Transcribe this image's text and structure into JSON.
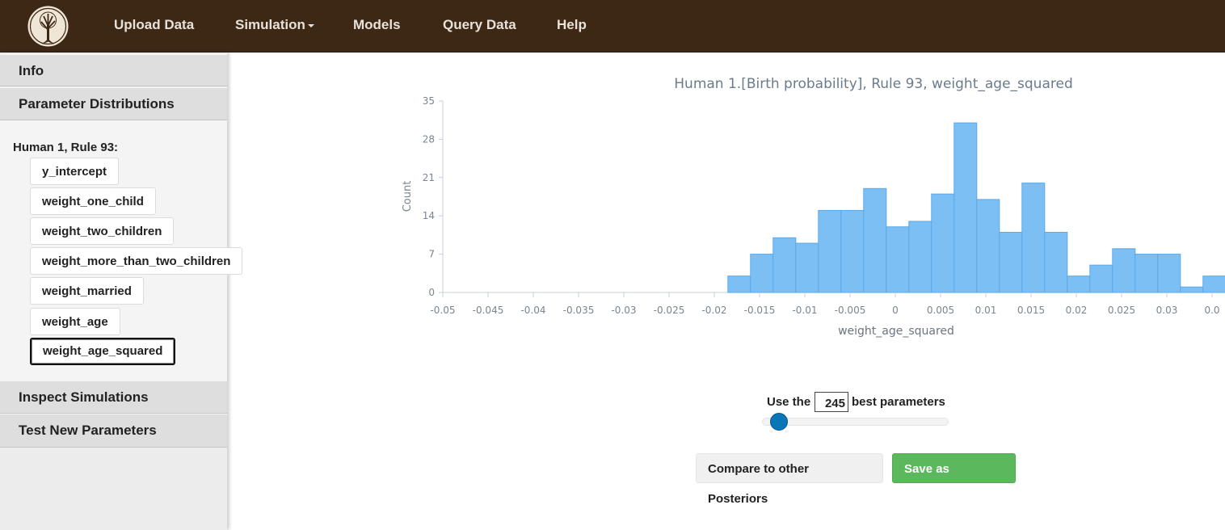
{
  "nav": {
    "items": [
      "Upload Data",
      "Simulation",
      "Models",
      "Query Data",
      "Help"
    ],
    "logo_icon": "tree-logo-icon"
  },
  "sidebar": {
    "sections": [
      "Info",
      "Parameter Distributions",
      "Inspect Simulations",
      "Test New Parameters"
    ],
    "group_title": "Human 1, Rule 93:",
    "params": [
      "y_intercept",
      "weight_one_child",
      "weight_two_children",
      "weight_more_than_two_children",
      "weight_married",
      "weight_age",
      "weight_age_squared"
    ],
    "selected_param": "weight_age_squared"
  },
  "chart_data": {
    "type": "bar",
    "title": "Human 1.[Birth probability], Rule 93, weight_age_squared",
    "xlabel": "weight_age_squared",
    "ylabel": "Count",
    "ylim": [
      0,
      35
    ],
    "yticks": [
      "0",
      "7",
      "14",
      "21",
      "28",
      "35"
    ],
    "xticks": [
      "-0.05",
      "-0.045",
      "-0.04",
      "-0.035",
      "-0.03",
      "-0.025",
      "-0.02",
      "-0.015",
      "-0.01",
      "-0.005",
      "0",
      "0.005",
      "0.01",
      "0.015",
      "0.02",
      "0.025",
      "0.03",
      "0.0"
    ],
    "bin_width": 0.0025,
    "bins": [
      {
        "x0": -0.0185,
        "count": 3
      },
      {
        "x0": -0.016,
        "count": 7
      },
      {
        "x0": -0.0135,
        "count": 10
      },
      {
        "x0": -0.011,
        "count": 9
      },
      {
        "x0": -0.0085,
        "count": 15
      },
      {
        "x0": -0.006,
        "count": 15
      },
      {
        "x0": -0.0035,
        "count": 19
      },
      {
        "x0": -0.001,
        "count": 12
      },
      {
        "x0": 0.0015,
        "count": 13
      },
      {
        "x0": 0.004,
        "count": 18
      },
      {
        "x0": 0.0065,
        "count": 31
      },
      {
        "x0": 0.009,
        "count": 17
      },
      {
        "x0": 0.0115,
        "count": 11
      },
      {
        "x0": 0.014,
        "count": 20
      },
      {
        "x0": 0.0165,
        "count": 11
      },
      {
        "x0": 0.019,
        "count": 3
      },
      {
        "x0": 0.0215,
        "count": 5
      },
      {
        "x0": 0.024,
        "count": 8
      },
      {
        "x0": 0.0265,
        "count": 7
      },
      {
        "x0": 0.029,
        "count": 7
      },
      {
        "x0": 0.0315,
        "count": 1
      },
      {
        "x0": 0.034,
        "count": 3
      }
    ],
    "bar_color": "#7cbff5",
    "bar_edge_color": "#5aa8e8"
  },
  "controls": {
    "use_the_label": "Use the",
    "best_count": "245",
    "best_parameters_label": "best parameters",
    "slider_fraction": 0.09,
    "compare_button": "Compare to other Posteriors",
    "save_button": "Save as Posterior"
  }
}
